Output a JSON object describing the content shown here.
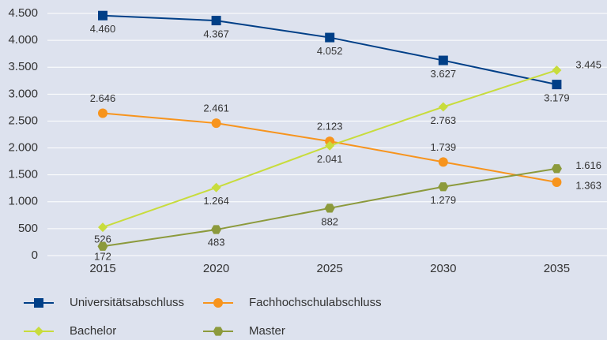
{
  "chart_data": {
    "type": "line",
    "categories": [
      "2015",
      "2020",
      "2025",
      "2030",
      "2035"
    ],
    "series": [
      {
        "name": "Universitätsabschluss",
        "color": "#003f87",
        "marker": "square",
        "values": [
          4460,
          4367,
          4052,
          3627,
          3179
        ],
        "value_labels": [
          "4.460",
          "4.367",
          "4.052",
          "3.627",
          "3.179"
        ]
      },
      {
        "name": "Fachhochschulabschluss",
        "color": "#f7941d",
        "marker": "circle",
        "values": [
          2646,
          2461,
          2123,
          1739,
          1363
        ],
        "value_labels": [
          "2.646",
          "2.461",
          "2.123",
          "1.739",
          "1.363"
        ]
      },
      {
        "name": "Bachelor",
        "color": "#c8dc3c",
        "marker": "diamond",
        "values": [
          526,
          1264,
          2041,
          2763,
          3445
        ],
        "value_labels": [
          "526",
          "1.264",
          "2.041",
          "2.763",
          "3.445"
        ]
      },
      {
        "name": "Master",
        "color": "#8c9a3c",
        "marker": "hexagon",
        "values": [
          172,
          483,
          882,
          1279,
          1616
        ],
        "value_labels": [
          "172",
          "483",
          "882",
          "1.279",
          "1.616"
        ]
      }
    ],
    "ylim": [
      0,
      4500
    ],
    "yticks": [
      0,
      500,
      {
        "value": 1000,
        "label": "1.000"
      },
      {
        "value": 1500,
        "label": "1.500"
      },
      {
        "value": 2000,
        "label": "2.000"
      },
      {
        "value": 2500,
        "label": "2.500"
      },
      {
        "value": 3000,
        "label": "3.000"
      },
      {
        "value": 3500,
        "label": "3.500"
      },
      {
        "value": 4000,
        "label": "4.000"
      },
      {
        "value": 4500,
        "label": "4.500"
      }
    ],
    "grid": true,
    "legend": "bottom"
  }
}
